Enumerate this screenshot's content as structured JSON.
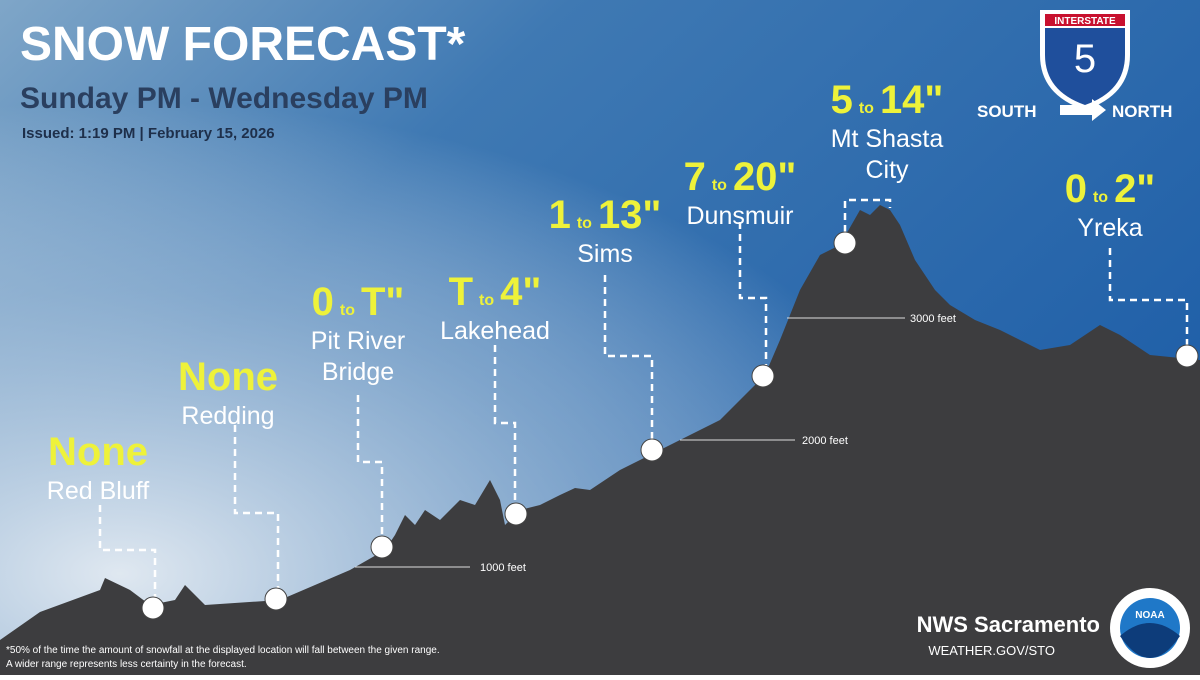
{
  "header": {
    "title": "SNOW FORECAST*",
    "subtitle": "Sunday PM - Wednesday PM",
    "issued": "Issued: 1:19 PM | February 15, 2026"
  },
  "shield": {
    "top": "INTERSTATE",
    "number": "5",
    "from": "SOUTH",
    "to": "NORTH"
  },
  "range_word": "to",
  "locations": [
    {
      "name": [
        "Red Bluff"
      ],
      "amount": "None"
    },
    {
      "name": [
        "Redding"
      ],
      "amount": "None"
    },
    {
      "name": [
        "Pit River",
        "Bridge"
      ],
      "low": "0",
      "high": "T\""
    },
    {
      "name": [
        "Lakehead"
      ],
      "low": "T",
      "high": "4\""
    },
    {
      "name": [
        "Sims"
      ],
      "low": "1",
      "high": "13\""
    },
    {
      "name": [
        "Dunsmuir"
      ],
      "low": "7",
      "high": "20\""
    },
    {
      "name": [
        "Mt Shasta",
        "City"
      ],
      "low": "5",
      "high": "14\""
    },
    {
      "name": [
        "Yreka"
      ],
      "low": "0",
      "high": "2\""
    }
  ],
  "elevations": [
    "1000 feet",
    "2000 feet",
    "3000 feet"
  ],
  "footnote": [
    "*50% of the time the amount of snowfall at the displayed location will fall between the given range.",
    "A wider range represents less certainty in the forecast."
  ],
  "credit": {
    "office": "NWS Sacramento",
    "url": "WEATHER.GOV/STO",
    "logo": "NOAA"
  }
}
